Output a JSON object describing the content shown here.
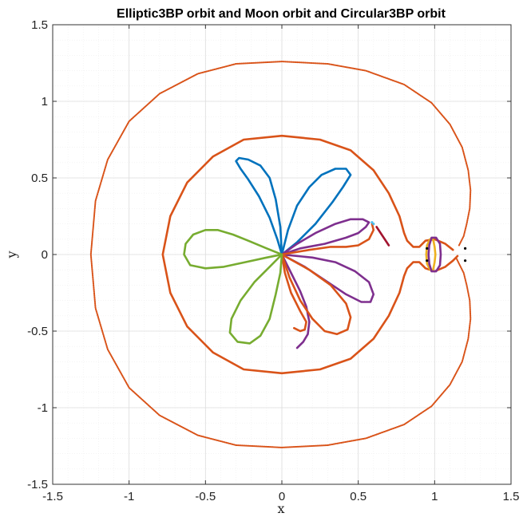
{
  "chart_data": {
    "type": "line",
    "title": "Elliptic3BP orbit and Moon orbit and Circular3BP orbit",
    "xlabel": "x",
    "ylabel": "y",
    "xlim": [
      -1.5,
      1.5
    ],
    "ylim": [
      -1.5,
      1.5
    ],
    "xticks": [
      -1.5,
      -1,
      -0.5,
      0,
      0.5,
      1,
      1.5
    ],
    "yticks": [
      -1.5,
      -1,
      -0.5,
      0,
      0.5,
      1,
      1.5
    ],
    "xtick_labels": [
      "-1.5",
      "-1",
      "-0.5",
      "0",
      "0.5",
      "1",
      "1.5"
    ],
    "ytick_labels": [
      "-1.5",
      "-1",
      "-0.5",
      "0",
      "0.5",
      "1",
      "1.5"
    ],
    "grid": true,
    "minor_grid": true,
    "colors": {
      "blue": "#0072BD",
      "orange": "#D95319",
      "yellow": "#EDB120",
      "purple": "#7E2F8E",
      "green": "#77AC30",
      "cyan": "#4DBEEE",
      "maroon": "#A2142F",
      "black": "#000000"
    },
    "series": [
      {
        "color": "#D95319",
        "style": "dotted",
        "points": [
          [
            1.16,
            0.06
          ],
          [
            1.19,
            0.12
          ],
          [
            1.21,
            0.2
          ],
          [
            1.23,
            0.3
          ],
          [
            1.235,
            0.42
          ],
          [
            1.22,
            0.55
          ],
          [
            1.18,
            0.7
          ],
          [
            1.1,
            0.85
          ],
          [
            0.98,
            0.99
          ],
          [
            0.8,
            1.11
          ],
          [
            0.55,
            1.2
          ],
          [
            0.3,
            1.245
          ],
          [
            0.0,
            1.26
          ],
          [
            -0.3,
            1.245
          ],
          [
            -0.55,
            1.18
          ],
          [
            -0.8,
            1.05
          ],
          [
            -1.0,
            0.87
          ],
          [
            -1.14,
            0.62
          ],
          [
            -1.22,
            0.35
          ],
          [
            -1.25,
            0.0
          ],
          [
            -1.22,
            -0.35
          ],
          [
            -1.14,
            -0.62
          ],
          [
            -1.0,
            -0.87
          ],
          [
            -0.8,
            -1.05
          ],
          [
            -0.55,
            -1.18
          ],
          [
            -0.3,
            -1.245
          ],
          [
            0.0,
            -1.26
          ],
          [
            0.3,
            -1.245
          ],
          [
            0.55,
            -1.2
          ],
          [
            0.8,
            -1.11
          ],
          [
            0.98,
            -0.99
          ],
          [
            1.1,
            -0.85
          ],
          [
            1.18,
            -0.7
          ],
          [
            1.22,
            -0.55
          ],
          [
            1.235,
            -0.42
          ],
          [
            1.23,
            -0.3
          ],
          [
            1.21,
            -0.2
          ],
          [
            1.19,
            -0.12
          ],
          [
            1.16,
            -0.06
          ],
          [
            1.14,
            -0.02
          ]
        ]
      },
      {
        "color": "#D95319",
        "style": "solid",
        "points": [
          [
            1.12,
            0.03
          ],
          [
            1.07,
            0.07
          ],
          [
            1.0,
            0.1
          ],
          [
            0.94,
            0.09
          ],
          [
            0.9,
            0.05
          ],
          [
            0.86,
            0.05
          ],
          [
            0.82,
            0.09
          ],
          [
            0.8,
            0.14
          ],
          [
            0.77,
            0.25
          ],
          [
            0.7,
            0.4
          ],
          [
            0.6,
            0.55
          ],
          [
            0.45,
            0.68
          ],
          [
            0.25,
            0.75
          ],
          [
            0.0,
            0.775
          ],
          [
            -0.25,
            0.75
          ],
          [
            -0.45,
            0.64
          ],
          [
            -0.62,
            0.47
          ],
          [
            -0.73,
            0.25
          ],
          [
            -0.78,
            0.0
          ],
          [
            -0.73,
            -0.25
          ],
          [
            -0.62,
            -0.47
          ],
          [
            -0.45,
            -0.64
          ],
          [
            -0.25,
            -0.75
          ],
          [
            0.0,
            -0.775
          ],
          [
            0.25,
            -0.75
          ],
          [
            0.45,
            -0.68
          ],
          [
            0.6,
            -0.55
          ],
          [
            0.7,
            -0.4
          ],
          [
            0.77,
            -0.25
          ],
          [
            0.8,
            -0.14
          ],
          [
            0.82,
            -0.09
          ],
          [
            0.86,
            -0.05
          ],
          [
            0.9,
            -0.05
          ],
          [
            0.94,
            -0.09
          ],
          [
            1.0,
            -0.11
          ],
          [
            1.07,
            -0.08
          ],
          [
            1.12,
            -0.04
          ],
          [
            1.15,
            -0.01
          ]
        ]
      },
      {
        "color": "#0072BD",
        "style": "solid",
        "points": [
          [
            0.0,
            0.0
          ],
          [
            -0.03,
            0.1
          ],
          [
            -0.08,
            0.24
          ],
          [
            -0.15,
            0.38
          ],
          [
            -0.22,
            0.49
          ],
          [
            -0.27,
            0.56
          ],
          [
            -0.3,
            0.61
          ],
          [
            -0.28,
            0.63
          ],
          [
            -0.22,
            0.62
          ],
          [
            -0.14,
            0.58
          ],
          [
            -0.08,
            0.5
          ],
          [
            -0.04,
            0.36
          ],
          [
            -0.01,
            0.18
          ],
          [
            0.0,
            0.0
          ]
        ]
      },
      {
        "color": "#0072BD",
        "style": "solid",
        "points": [
          [
            0.0,
            0.0
          ],
          [
            0.1,
            0.08
          ],
          [
            0.22,
            0.2
          ],
          [
            0.33,
            0.34
          ],
          [
            0.4,
            0.44
          ],
          [
            0.45,
            0.52
          ],
          [
            0.42,
            0.56
          ],
          [
            0.35,
            0.56
          ],
          [
            0.26,
            0.52
          ],
          [
            0.18,
            0.44
          ],
          [
            0.1,
            0.32
          ],
          [
            0.04,
            0.16
          ],
          [
            0.0,
            0.0
          ]
        ]
      },
      {
        "color": "#7E2F8E",
        "style": "solid",
        "points": [
          [
            0.0,
            0.0
          ],
          [
            0.12,
            0.04
          ],
          [
            0.28,
            0.07
          ],
          [
            0.42,
            0.11
          ],
          [
            0.5,
            0.14
          ],
          [
            0.55,
            0.18
          ],
          [
            0.57,
            0.21
          ],
          [
            0.53,
            0.23
          ],
          [
            0.45,
            0.23
          ],
          [
            0.35,
            0.2
          ],
          [
            0.22,
            0.14
          ],
          [
            0.1,
            0.07
          ],
          [
            0.0,
            0.0
          ]
        ]
      },
      {
        "color": "#7E2F8E",
        "style": "solid",
        "points": [
          [
            0.0,
            0.0
          ],
          [
            0.2,
            -0.02
          ],
          [
            0.35,
            -0.05
          ],
          [
            0.48,
            -0.11
          ],
          [
            0.57,
            -0.18
          ],
          [
            0.6,
            -0.26
          ],
          [
            0.58,
            -0.31
          ],
          [
            0.52,
            -0.31
          ],
          [
            0.42,
            -0.26
          ],
          [
            0.3,
            -0.18
          ],
          [
            0.15,
            -0.08
          ],
          [
            0.0,
            0.0
          ]
        ]
      },
      {
        "color": "#7E2F8E",
        "style": "solid",
        "points": [
          [
            0.0,
            0.0
          ],
          [
            0.06,
            -0.12
          ],
          [
            0.12,
            -0.24
          ],
          [
            0.16,
            -0.34
          ],
          [
            0.18,
            -0.44
          ],
          [
            0.17,
            -0.52
          ],
          [
            0.14,
            -0.57
          ],
          [
            0.1,
            -0.61
          ]
        ]
      },
      {
        "color": "#D95319",
        "style": "solid",
        "points": [
          [
            0.0,
            0.0
          ],
          [
            0.18,
            -0.1
          ],
          [
            0.32,
            -0.2
          ],
          [
            0.42,
            -0.32
          ],
          [
            0.45,
            -0.41
          ],
          [
            0.43,
            -0.49
          ],
          [
            0.36,
            -0.52
          ],
          [
            0.28,
            -0.5
          ],
          [
            0.2,
            -0.42
          ],
          [
            0.12,
            -0.3
          ],
          [
            0.05,
            -0.15
          ],
          [
            0.0,
            0.0
          ]
        ]
      },
      {
        "color": "#D95319",
        "style": "solid",
        "points": [
          [
            0.0,
            0.0
          ],
          [
            0.18,
            0.03
          ],
          [
            0.32,
            0.05
          ],
          [
            0.42,
            0.05
          ],
          [
            0.5,
            0.06
          ],
          [
            0.57,
            0.1
          ],
          [
            0.6,
            0.16
          ],
          [
            0.59,
            0.2
          ]
        ]
      },
      {
        "color": "#D95319",
        "style": "solid",
        "points": [
          [
            0.0,
            0.0
          ],
          [
            0.02,
            -0.12
          ],
          [
            0.06,
            -0.25
          ],
          [
            0.12,
            -0.37
          ],
          [
            0.16,
            -0.44
          ],
          [
            0.15,
            -0.49
          ],
          [
            0.12,
            -0.5
          ],
          [
            0.08,
            -0.48
          ]
        ]
      },
      {
        "color": "#77AC30",
        "style": "solid",
        "points": [
          [
            0.0,
            0.0
          ],
          [
            -0.1,
            0.04
          ],
          [
            -0.22,
            0.09
          ],
          [
            -0.32,
            0.13
          ],
          [
            -0.42,
            0.16
          ],
          [
            -0.5,
            0.16
          ],
          [
            -0.58,
            0.13
          ],
          [
            -0.63,
            0.07
          ],
          [
            -0.64,
            0.0
          ],
          [
            -0.6,
            -0.07
          ],
          [
            -0.5,
            -0.09
          ],
          [
            -0.38,
            -0.08
          ],
          [
            -0.24,
            -0.05
          ],
          [
            -0.1,
            -0.02
          ],
          [
            0.0,
            0.0
          ]
        ]
      },
      {
        "color": "#77AC30",
        "style": "solid",
        "points": [
          [
            0.0,
            0.0
          ],
          [
            -0.08,
            -0.08
          ],
          [
            -0.18,
            -0.18
          ],
          [
            -0.27,
            -0.3
          ],
          [
            -0.33,
            -0.42
          ],
          [
            -0.34,
            -0.51
          ],
          [
            -0.29,
            -0.57
          ],
          [
            -0.21,
            -0.58
          ],
          [
            -0.14,
            -0.53
          ],
          [
            -0.08,
            -0.42
          ],
          [
            -0.04,
            -0.26
          ],
          [
            -0.01,
            -0.12
          ],
          [
            0.0,
            0.0
          ]
        ]
      },
      {
        "color": "#EDB120",
        "style": "solid",
        "points": [
          [
            0.97,
            0.1
          ],
          [
            0.95,
            0.06
          ],
          [
            0.945,
            0.0
          ],
          [
            0.95,
            -0.06
          ],
          [
            0.97,
            -0.1
          ],
          [
            0.99,
            -0.1
          ],
          [
            1.0,
            -0.05
          ],
          [
            1.005,
            0.0
          ],
          [
            1.0,
            0.05
          ],
          [
            0.99,
            0.1
          ],
          [
            0.97,
            0.1
          ]
        ]
      },
      {
        "color": "#7E2F8E",
        "style": "solid",
        "points": [
          [
            0.98,
            0.11
          ],
          [
            1.01,
            0.11
          ],
          [
            1.035,
            0.07
          ],
          [
            1.04,
            0.0
          ],
          [
            1.035,
            -0.07
          ],
          [
            1.01,
            -0.11
          ],
          [
            0.98,
            -0.11
          ],
          [
            0.965,
            -0.06
          ],
          [
            0.96,
            0.0
          ],
          [
            0.965,
            0.06
          ],
          [
            0.98,
            0.11
          ]
        ]
      },
      {
        "color": "#A2142F",
        "style": "solid",
        "points": [
          [
            0.62,
            0.18
          ],
          [
            0.66,
            0.12
          ],
          [
            0.7,
            0.06
          ]
        ]
      },
      {
        "color": "#4DBEEE",
        "style": "marker",
        "points": [
          [
            0.59,
            0.21
          ],
          [
            0.6,
            0.2
          ]
        ]
      },
      {
        "color": "#000000",
        "style": "marker",
        "points": [
          [
            0.95,
            0.04
          ],
          [
            0.95,
            -0.04
          ],
          [
            1.2,
            0.04
          ],
          [
            1.2,
            -0.04
          ]
        ]
      }
    ]
  }
}
